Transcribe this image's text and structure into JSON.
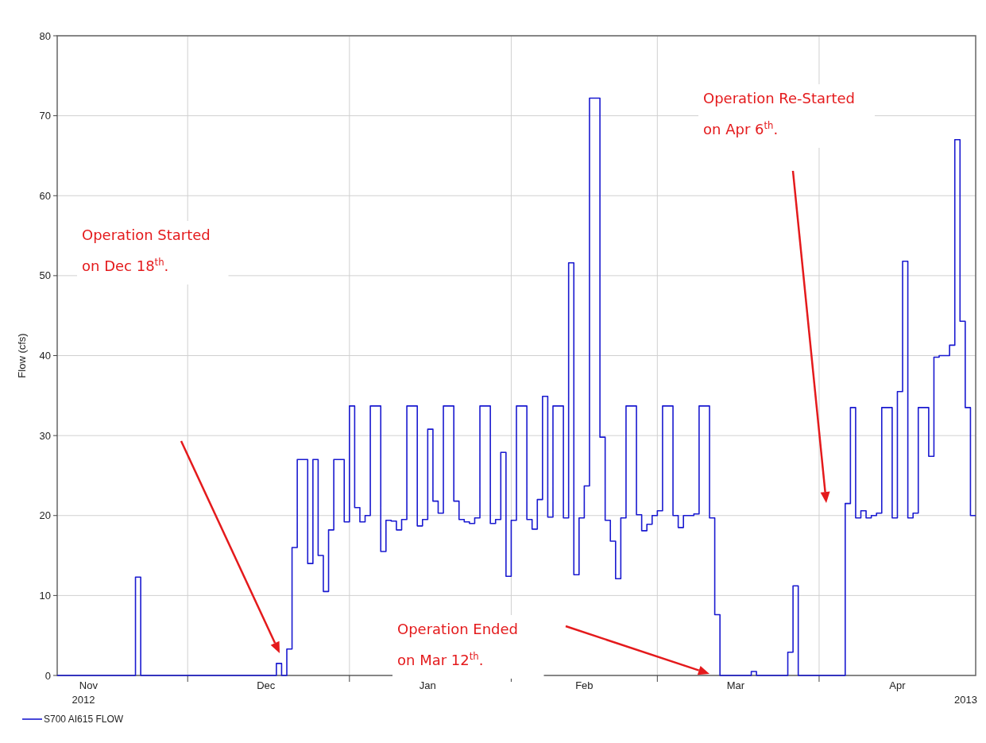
{
  "chart_data": {
    "type": "step",
    "ylabel": "Flow (cfs)",
    "xlim": [
      "2012-11-06",
      "2013-05-01"
    ],
    "xticks": [
      {
        "value": "2012-11-12",
        "label": "Nov"
      },
      {
        "value": "2012-12-01",
        "label": null
      },
      {
        "value": "2012-12-16",
        "label": "Dec"
      },
      {
        "value": "2013-01-01",
        "label": null
      },
      {
        "value": "2013-01-16",
        "label": "Jan"
      },
      {
        "value": "2013-02-01",
        "label": null
      },
      {
        "value": "2013-02-15",
        "label": "Feb"
      },
      {
        "value": "2013-03-01",
        "label": null
      },
      {
        "value": "2013-03-16",
        "label": "Mar"
      },
      {
        "value": "2013-04-01",
        "label": null
      },
      {
        "value": "2013-04-16",
        "label": "Apr"
      }
    ],
    "ylim": [
      0,
      80
    ],
    "yticks": [
      0,
      10,
      20,
      30,
      40,
      50,
      60,
      70,
      80
    ],
    "grid": true,
    "legend": "bottom left",
    "series": [
      {
        "name": "S700 AI615 FLOW",
        "color": "#1a1ad0",
        "x": [
          "2012-11-06",
          "2012-11-21",
          "2012-11-22",
          "2012-12-18",
          "2012-12-19",
          "2012-12-20",
          "2012-12-21",
          "2012-12-22",
          "2012-12-24",
          "2012-12-25",
          "2012-12-26",
          "2012-12-27",
          "2012-12-28",
          "2012-12-29",
          "2012-12-31",
          "2013-01-01",
          "2013-01-02",
          "2013-01-03",
          "2013-01-04",
          "2013-01-05",
          "2013-01-07",
          "2013-01-08",
          "2013-01-09",
          "2013-01-10",
          "2013-01-11",
          "2013-01-12",
          "2013-01-14",
          "2013-01-15",
          "2013-01-16",
          "2013-01-17",
          "2013-01-18",
          "2013-01-19",
          "2013-01-21",
          "2013-01-22",
          "2013-01-23",
          "2013-01-24",
          "2013-01-25",
          "2013-01-26",
          "2013-01-28",
          "2013-01-29",
          "2013-01-30",
          "2013-01-31",
          "2013-02-01",
          "2013-02-02",
          "2013-02-04",
          "2013-02-05",
          "2013-02-06",
          "2013-02-07",
          "2013-02-08",
          "2013-02-09",
          "2013-02-11",
          "2013-02-12",
          "2013-02-13",
          "2013-02-14",
          "2013-02-15",
          "2013-02-16",
          "2013-02-18",
          "2013-02-19",
          "2013-02-20",
          "2013-02-21",
          "2013-02-22",
          "2013-02-23",
          "2013-02-25",
          "2013-02-26",
          "2013-02-27",
          "2013-02-28",
          "2013-03-01",
          "2013-03-02",
          "2013-03-04",
          "2013-03-05",
          "2013-03-06",
          "2013-03-08",
          "2013-03-09",
          "2013-03-11",
          "2013-03-12",
          "2013-03-13",
          "2013-03-19",
          "2013-03-20",
          "2013-03-26",
          "2013-03-27",
          "2013-03-28",
          "2013-04-06",
          "2013-04-07",
          "2013-04-08",
          "2013-04-09",
          "2013-04-10",
          "2013-04-11",
          "2013-04-12",
          "2013-04-13",
          "2013-04-15",
          "2013-04-16",
          "2013-04-17",
          "2013-04-18",
          "2013-04-19",
          "2013-04-20",
          "2013-04-22",
          "2013-04-23",
          "2013-04-24",
          "2013-04-26",
          "2013-04-27",
          "2013-04-28",
          "2013-04-29",
          "2013-04-30",
          "2013-05-01"
        ],
        "values": [
          0,
          12.3,
          0,
          1.5,
          0,
          3.3,
          16,
          27,
          14,
          27,
          15,
          10.5,
          18.2,
          27,
          19.2,
          33.7,
          21,
          19.2,
          20,
          33.7,
          15.5,
          19.4,
          19.3,
          18.2,
          19.5,
          33.7,
          18.7,
          19.5,
          30.8,
          21.8,
          20.3,
          33.7,
          21.8,
          19.5,
          19.2,
          19,
          19.7,
          33.7,
          19,
          19.5,
          27.9,
          12.4,
          19.4,
          33.7,
          19.5,
          18.3,
          22,
          34.9,
          19.8,
          33.7,
          19.7,
          51.6,
          12.6,
          19.7,
          23.7,
          72.2,
          29.8,
          19.4,
          16.8,
          12.1,
          19.7,
          33.7,
          20.1,
          18.1,
          18.9,
          20,
          20.6,
          33.7,
          20,
          18.5,
          20,
          20.2,
          33.7,
          19.7,
          7.6,
          0,
          0.5,
          0,
          2.9,
          11.2,
          0,
          21.5,
          33.5,
          19.7,
          20.6,
          19.7,
          20,
          20.3,
          33.5,
          19.7,
          35.5,
          51.8,
          19.7,
          20.3,
          33.5,
          27.4,
          39.8,
          40,
          41.3,
          67,
          44.3,
          33.5,
          20,
          20
        ]
      }
    ],
    "annotations": [
      "Operation Started\non Dec 18$^{th}$.",
      "Operation Ended\non Mar 12$^{th}$.",
      "Operation Re-Started\non Apr 6$^{th}$.",
      "2012",
      "2013"
    ]
  }
}
